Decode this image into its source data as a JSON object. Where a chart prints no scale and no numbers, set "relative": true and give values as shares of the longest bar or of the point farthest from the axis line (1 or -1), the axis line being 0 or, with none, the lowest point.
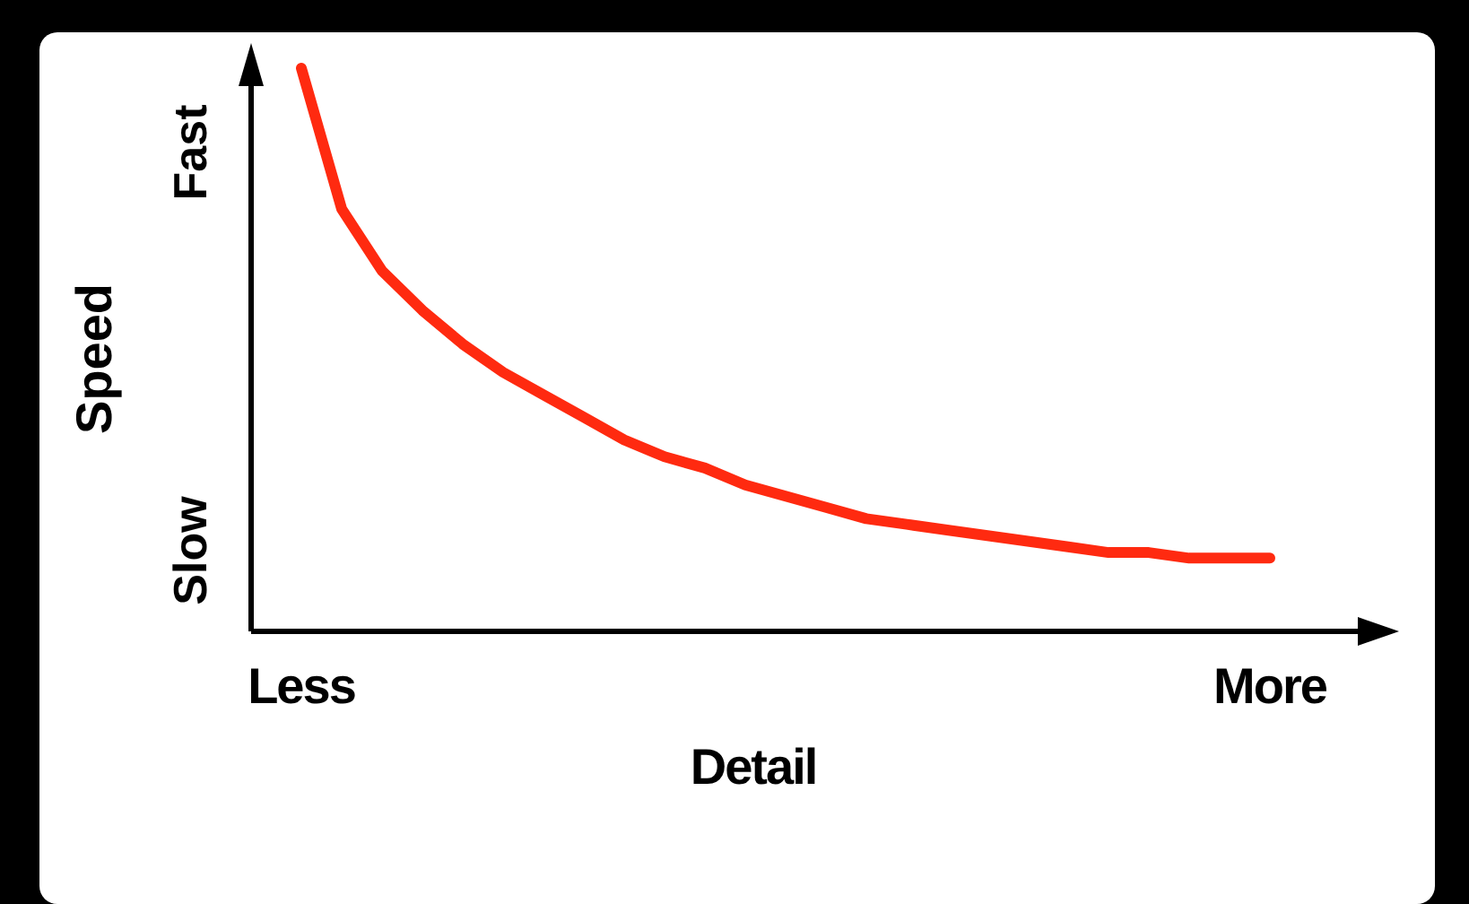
{
  "chart_data": {
    "type": "line",
    "relative": true,
    "xlabel": "Detail",
    "ylabel": "Speed",
    "categories": [
      "Less",
      null,
      null,
      null,
      null,
      null,
      null,
      null,
      null,
      null,
      null,
      null,
      null,
      null,
      null,
      null,
      null,
      null,
      null,
      null,
      null,
      null,
      null,
      null,
      "More"
    ],
    "series": [
      {
        "color": "#ff2a10",
        "values": [
          1,
          0.75,
          0.64,
          0.57,
          0.51,
          0.46,
          0.42,
          0.38,
          0.34,
          0.31,
          0.29,
          0.26,
          0.24,
          0.22,
          0.2,
          0.19,
          0.18,
          0.17,
          0.16,
          0.15,
          0.14,
          0.14,
          0.13,
          0.13,
          0.13
        ]
      }
    ],
    "annotations": [
      "Slow",
      "Fast"
    ],
    "marker": "none",
    "line_style": "solid"
  }
}
